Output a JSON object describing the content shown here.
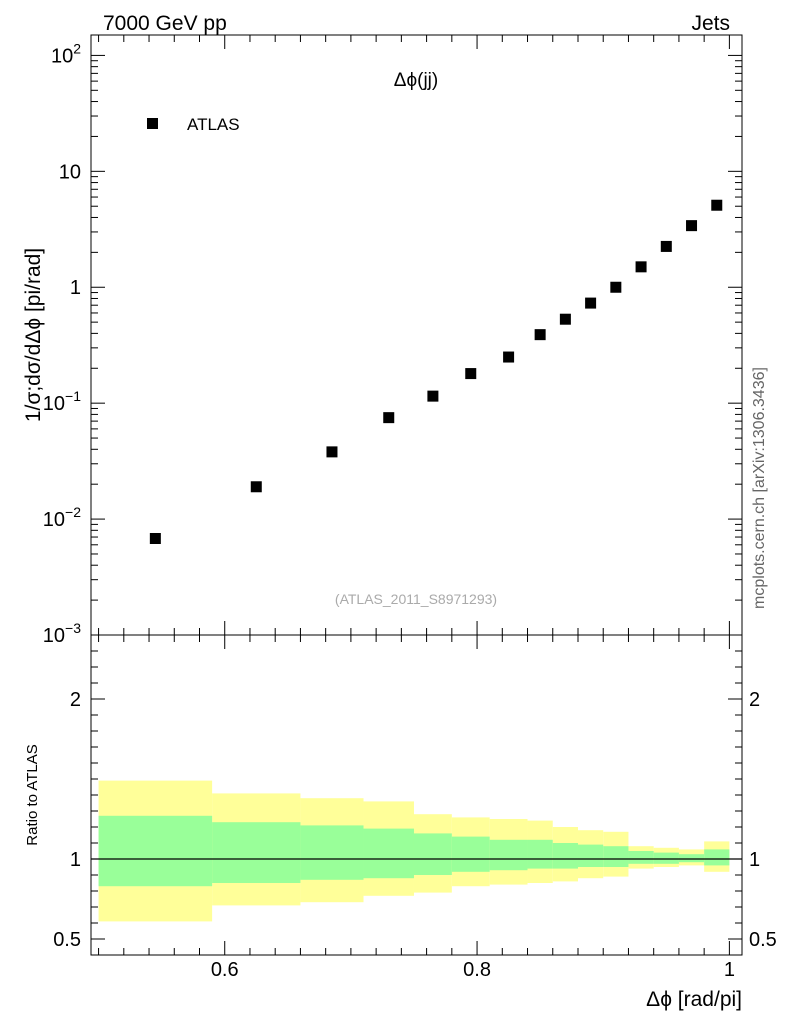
{
  "header": {
    "left": "7000 GeV pp",
    "right": "Jets"
  },
  "side_label": "mcplots.cern.ch [arXiv:1306.3436]",
  "watermark": "(ATLAS_2011_S8971293)",
  "colors": {
    "band_outer": "#ffff99",
    "band_inner": "#99ff99",
    "marker": "#000000"
  },
  "chart_data": [
    {
      "type": "scatter",
      "title": "Δϕ(jj)",
      "ylabel": "1/σ;dσ/dΔϕ [pi/rad]",
      "xlabel": "",
      "yscale": "log",
      "xlim": [
        0.494,
        1.01
      ],
      "ylim": [
        0.001,
        150
      ],
      "legend": [
        {
          "label": "ATLAS",
          "marker": "square"
        }
      ],
      "yticks": [
        {
          "base": "10",
          "exp": "2",
          "v": 100
        },
        {
          "base": "10",
          "exp": "",
          "v": 10
        },
        {
          "base": "1",
          "exp": "",
          "v": 1
        },
        {
          "base": "10",
          "exp": "−1",
          "v": 0.1
        },
        {
          "base": "10",
          "exp": "−2",
          "v": 0.01
        },
        {
          "base": "10",
          "exp": "−3",
          "v": 0.001
        }
      ],
      "series": [
        {
          "name": "ATLAS",
          "x": [
            0.545,
            0.625,
            0.685,
            0.73,
            0.765,
            0.795,
            0.825,
            0.85,
            0.87,
            0.89,
            0.91,
            0.93,
            0.95,
            0.97,
            0.99
          ],
          "y": [
            0.0068,
            0.019,
            0.038,
            0.075,
            0.115,
            0.18,
            0.25,
            0.39,
            0.53,
            0.73,
            1.0,
            1.5,
            2.25,
            3.4,
            5.1
          ]
        }
      ]
    },
    {
      "type": "area",
      "ylabel": "Ratio to ATLAS",
      "xlabel": "Δϕ [rad/pi]",
      "xlim": [
        0.494,
        1.01
      ],
      "ylim": [
        0.4,
        2.4
      ],
      "xticks": [
        "0.6",
        "0.8",
        "1"
      ],
      "xtick_values": [
        0.6,
        0.8,
        1.0
      ],
      "yticks": [
        "0.5",
        "1",
        "2"
      ],
      "ytick_values": [
        0.5,
        1,
        2
      ],
      "reference_line": 1,
      "bins": [
        {
          "lo": 0.5,
          "hi": 0.59,
          "outer": [
            0.61,
            1.49
          ],
          "inner": [
            0.83,
            1.27
          ]
        },
        {
          "lo": 0.59,
          "hi": 0.66,
          "outer": [
            0.71,
            1.41
          ],
          "inner": [
            0.85,
            1.23
          ]
        },
        {
          "lo": 0.66,
          "hi": 0.71,
          "outer": [
            0.73,
            1.38
          ],
          "inner": [
            0.87,
            1.21
          ]
        },
        {
          "lo": 0.71,
          "hi": 0.75,
          "outer": [
            0.77,
            1.36
          ],
          "inner": [
            0.88,
            1.19
          ]
        },
        {
          "lo": 0.75,
          "hi": 0.78,
          "outer": [
            0.79,
            1.28
          ],
          "inner": [
            0.9,
            1.16
          ]
        },
        {
          "lo": 0.78,
          "hi": 0.81,
          "outer": [
            0.83,
            1.26
          ],
          "inner": [
            0.92,
            1.14
          ]
        },
        {
          "lo": 0.81,
          "hi": 0.84,
          "outer": [
            0.84,
            1.25
          ],
          "inner": [
            0.93,
            1.12
          ]
        },
        {
          "lo": 0.84,
          "hi": 0.86,
          "outer": [
            0.85,
            1.24
          ],
          "inner": [
            0.94,
            1.12
          ]
        },
        {
          "lo": 0.86,
          "hi": 0.88,
          "outer": [
            0.86,
            1.2
          ],
          "inner": [
            0.94,
            1.1
          ]
        },
        {
          "lo": 0.88,
          "hi": 0.9,
          "outer": [
            0.88,
            1.18
          ],
          "inner": [
            0.95,
            1.09
          ]
        },
        {
          "lo": 0.9,
          "hi": 0.92,
          "outer": [
            0.89,
            1.17
          ],
          "inner": [
            0.95,
            1.08
          ]
        },
        {
          "lo": 0.92,
          "hi": 0.94,
          "outer": [
            0.94,
            1.08
          ],
          "inner": [
            0.97,
            1.05
          ]
        },
        {
          "lo": 0.94,
          "hi": 0.96,
          "outer": [
            0.95,
            1.07
          ],
          "inner": [
            0.97,
            1.04
          ]
        },
        {
          "lo": 0.96,
          "hi": 0.98,
          "outer": [
            0.96,
            1.06
          ],
          "inner": [
            0.98,
            1.03
          ]
        },
        {
          "lo": 0.98,
          "hi": 1.0,
          "outer": [
            0.92,
            1.11
          ],
          "inner": [
            0.96,
            1.06
          ]
        }
      ]
    }
  ]
}
